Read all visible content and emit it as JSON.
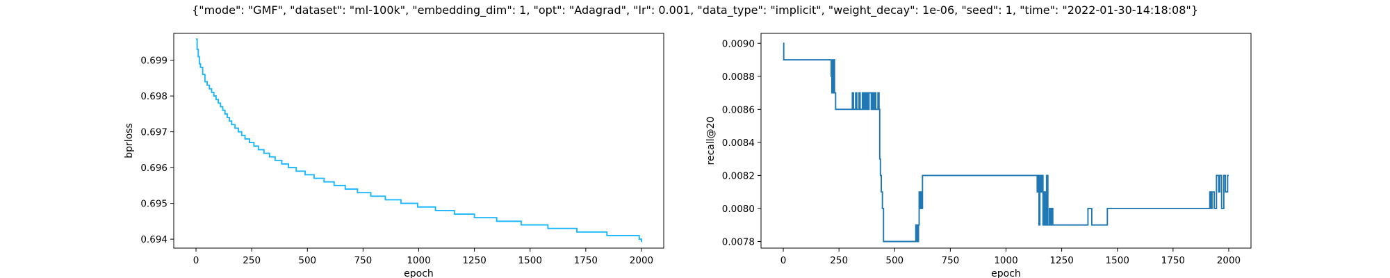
{
  "figure_title": "{\"mode\": \"GMF\", \"dataset\": \"ml-100k\", \"embedding_dim\": 1, \"opt\": \"Adagrad\", \"lr\": 0.001, \"data_type\": \"implicit\", \"weight_decay\": 1e-06, \"seed\": 1, \"time\": \"2022-01-30-14:18:08\"}",
  "chart_data": [
    {
      "type": "line",
      "xlabel": "epoch",
      "ylabel": "bprloss",
      "xlim": [
        -100,
        2100
      ],
      "ylim": [
        0.69375,
        0.69975
      ],
      "xticks": [
        0,
        250,
        500,
        750,
        1000,
        1250,
        1500,
        1750,
        2000
      ],
      "yticks": [
        0.694,
        0.695,
        0.696,
        0.697,
        0.698,
        0.699
      ],
      "ytick_labels": [
        "0.694",
        "0.695",
        "0.696",
        "0.697",
        "0.698",
        "0.699"
      ],
      "color": "#1ab6ff",
      "series": [
        {
          "step": "post",
          "x": [
            0,
            5,
            10,
            15,
            20,
            30,
            40,
            50,
            60,
            70,
            80,
            90,
            100,
            110,
            120,
            130,
            140,
            150,
            160,
            175,
            190,
            205,
            220,
            240,
            260,
            280,
            305,
            330,
            355,
            385,
            415,
            450,
            490,
            530,
            575,
            620,
            670,
            725,
            785,
            850,
            920,
            995,
            1075,
            1160,
            1250,
            1350,
            1460,
            1580,
            1710,
            1845,
            1990,
            2000
          ],
          "y": [
            0.69959,
            0.6993,
            0.6991,
            0.6989,
            0.6988,
            0.6986,
            0.6984,
            0.6983,
            0.6982,
            0.6981,
            0.698,
            0.6979,
            0.6978,
            0.6977,
            0.6976,
            0.6975,
            0.6974,
            0.6973,
            0.6972,
            0.6971,
            0.697,
            0.6969,
            0.6968,
            0.6967,
            0.6966,
            0.6965,
            0.6964,
            0.6963,
            0.6962,
            0.6961,
            0.696,
            0.6959,
            0.6958,
            0.6957,
            0.6956,
            0.6955,
            0.6954,
            0.6953,
            0.6952,
            0.6951,
            0.695,
            0.6949,
            0.6948,
            0.6947,
            0.6946,
            0.6945,
            0.6944,
            0.6943,
            0.6942,
            0.6941,
            0.694,
            0.69392
          ]
        }
      ]
    },
    {
      "type": "line",
      "xlabel": "epoch",
      "ylabel": "recall@20",
      "xlim": [
        -100,
        2100
      ],
      "ylim": [
        0.00776,
        0.00906
      ],
      "xticks": [
        0,
        250,
        500,
        750,
        1000,
        1250,
        1500,
        1750,
        2000
      ],
      "yticks": [
        0.0078,
        0.008,
        0.0082,
        0.0084,
        0.0086,
        0.0088,
        0.009
      ],
      "ytick_labels": [
        "0.0078",
        "0.0080",
        "0.0082",
        "0.0084",
        "0.0086",
        "0.0088",
        "0.0090"
      ],
      "color": "#1f77b4",
      "series": [
        {
          "step": "post",
          "x": [
            0,
            2,
            215,
            218,
            221,
            224,
            227,
            230,
            235,
            310,
            315,
            325,
            330,
            340,
            345,
            355,
            360,
            365,
            370,
            375,
            380,
            385,
            395,
            400,
            405,
            410,
            415,
            425,
            430,
            433,
            436,
            440,
            445,
            450,
            595,
            598,
            601,
            604,
            607,
            610,
            614,
            618,
            622,
            625,
            1140,
            1144,
            1148,
            1152,
            1156,
            1160,
            1166,
            1172,
            1176,
            1182,
            1188,
            1195,
            1200,
            1205,
            1210,
            1365,
            1368,
            1380,
            1385,
            1445,
            1455,
            1910,
            1915,
            1920,
            1925,
            1935,
            1945,
            1955,
            1960,
            1968,
            1978,
            1985,
            1995,
            2000
          ],
          "y": [
            0.009,
            0.0089,
            0.0088,
            0.0087,
            0.0089,
            0.0087,
            0.0089,
            0.0087,
            0.0086,
            0.0087,
            0.0086,
            0.0087,
            0.0086,
            0.0087,
            0.0086,
            0.0087,
            0.0086,
            0.0087,
            0.0086,
            0.0087,
            0.0086,
            0.0087,
            0.0086,
            0.0087,
            0.0086,
            0.0087,
            0.0086,
            0.0087,
            0.0086,
            0.0083,
            0.0082,
            0.0081,
            0.008,
            0.0078,
            0.0079,
            0.0078,
            0.0079,
            0.0078,
            0.0079,
            0.0081,
            0.008,
            0.0081,
            0.008,
            0.0082,
            0.0081,
            0.0082,
            0.0079,
            0.0082,
            0.0081,
            0.0082,
            0.0079,
            0.0081,
            0.0079,
            0.0082,
            0.0079,
            0.008,
            0.0079,
            0.008,
            0.0079,
            0.0079,
            0.008,
            0.008,
            0.0079,
            0.0079,
            0.008,
            0.008,
            0.0081,
            0.008,
            0.0081,
            0.008,
            0.0082,
            0.0081,
            0.0082,
            0.008,
            0.0082,
            0.0081,
            0.0082,
            0.0082
          ]
        }
      ]
    }
  ]
}
